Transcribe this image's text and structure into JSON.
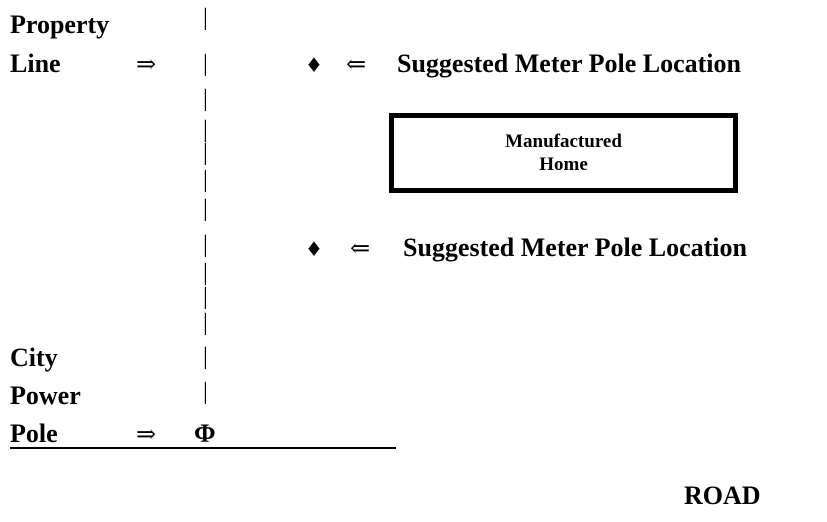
{
  "property_line": {
    "line1": "Property",
    "line2": "Line",
    "arrow": "⇒"
  },
  "property_boundary": {
    "segments": [
      "|",
      "|",
      "|",
      "|",
      "|",
      "|",
      "|",
      "|",
      "|",
      "|",
      "|",
      "|",
      "|"
    ]
  },
  "meter_top": {
    "marker": "♦",
    "arrow": "⇐",
    "label": "Suggested Meter Pole Location"
  },
  "home": {
    "line1": "Manufactured",
    "line2": "Home"
  },
  "meter_bottom": {
    "marker": "♦",
    "arrow": "⇐",
    "label": "Suggested Meter Pole Location"
  },
  "city_pole": {
    "line1": "City",
    "line2": "Power",
    "line3": "Pole",
    "arrow": "⇒",
    "symbol": "Φ"
  },
  "road": {
    "label": "ROAD"
  }
}
